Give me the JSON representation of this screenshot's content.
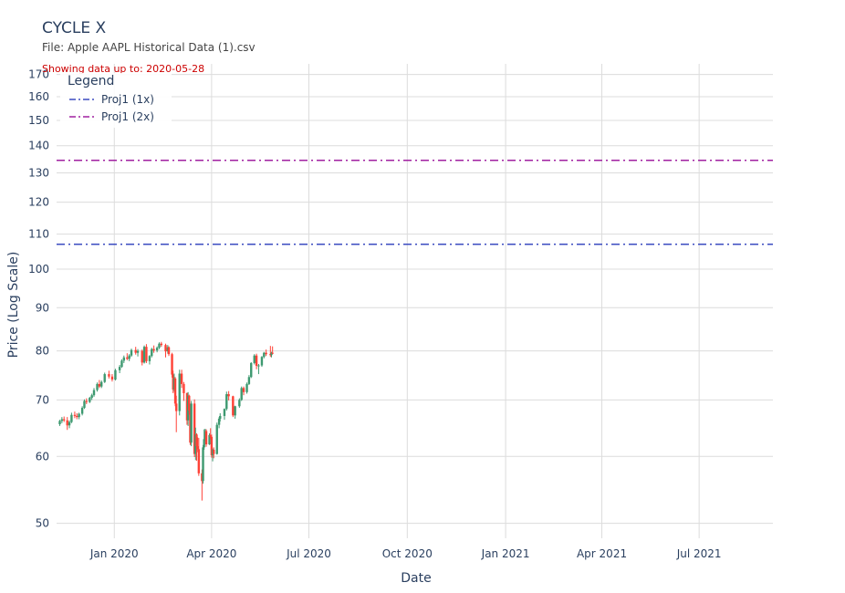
{
  "chart_data": {
    "type": "candlestick",
    "title": "CYCLE X",
    "subtitle": "File: Apple AAPL Historical Data (1).csv",
    "note": "Showing data up to: 2020-05-28",
    "xlabel": "Date",
    "ylabel": "Price (Log Scale)",
    "y_scale": "log",
    "ylim": [
      48,
      175
    ],
    "xlim": [
      "2019-11-08",
      "2021-09-08"
    ],
    "yticks": [
      50,
      60,
      70,
      80,
      90,
      100,
      110,
      120,
      130,
      140,
      150,
      160,
      170
    ],
    "xticks": [
      {
        "date": "2020-01-01",
        "label": "Jan 2020"
      },
      {
        "date": "2020-04-01",
        "label": "Apr 2020"
      },
      {
        "date": "2020-07-01",
        "label": "Jul 2020"
      },
      {
        "date": "2020-10-01",
        "label": "Oct 2020"
      },
      {
        "date": "2021-01-01",
        "label": "Jan 2021"
      },
      {
        "date": "2021-04-01",
        "label": "Apr 2021"
      },
      {
        "date": "2021-07-01",
        "label": "Jul 2021"
      }
    ],
    "grid": true,
    "legend": {
      "title": "Legend",
      "position": "top-left"
    },
    "colors": {
      "increasing": "#3d9970",
      "decreasing": "#ff4136",
      "proj1_1x": "#3b4cc0",
      "proj1_2x": "#a020a0"
    },
    "series": [
      {
        "name": "Proj1 (1x)",
        "type": "hline",
        "value": 107,
        "color": "#3b4cc0",
        "dash": "dashdot"
      },
      {
        "name": "Proj1 (2x)",
        "type": "hline",
        "value": 134.5,
        "color": "#a020a0",
        "dash": "dashdot"
      }
    ],
    "candles": [
      [
        "2019-11-11",
        65.5,
        66.3,
        65.2,
        66.1
      ],
      [
        "2019-11-13",
        66.1,
        66.8,
        65.7,
        66.4
      ],
      [
        "2019-11-15",
        66.4,
        66.9,
        65.9,
        66.2
      ],
      [
        "2019-11-18",
        66.2,
        66.8,
        64.5,
        65.3
      ],
      [
        "2019-11-20",
        65.3,
        66.2,
        64.8,
        65.9
      ],
      [
        "2019-11-22",
        65.9,
        67.6,
        65.7,
        67.2
      ],
      [
        "2019-11-25",
        67.2,
        67.8,
        66.6,
        67.0
      ],
      [
        "2019-11-27",
        67.0,
        67.5,
        66.4,
        66.8
      ],
      [
        "2019-11-29",
        66.8,
        67.6,
        66.4,
        67.4
      ],
      [
        "2019-12-02",
        67.4,
        68.8,
        67.1,
        68.5
      ],
      [
        "2019-12-04",
        68.5,
        70.1,
        68.3,
        69.8
      ],
      [
        "2019-12-06",
        69.8,
        70.3,
        69.2,
        69.6
      ],
      [
        "2019-12-09",
        69.6,
        70.6,
        69.4,
        70.4
      ],
      [
        "2019-12-11",
        70.4,
        71.2,
        70.0,
        70.9
      ],
      [
        "2019-12-13",
        70.9,
        72.3,
        70.6,
        71.9
      ],
      [
        "2019-12-16",
        71.9,
        73.4,
        71.6,
        73.1
      ],
      [
        "2019-12-18",
        73.1,
        73.9,
        72.3,
        72.6
      ],
      [
        "2019-12-20",
        72.6,
        73.8,
        72.3,
        73.5
      ],
      [
        "2019-12-23",
        73.5,
        75.4,
        73.3,
        75.1
      ],
      [
        "2019-12-27",
        75.1,
        75.8,
        74.2,
        74.6
      ],
      [
        "2019-12-30",
        74.6,
        75.1,
        73.6,
        74.0
      ],
      [
        "2020-01-02",
        74.0,
        76.2,
        73.8,
        75.9
      ],
      [
        "2020-01-06",
        75.9,
        77.0,
        75.3,
        76.6
      ],
      [
        "2020-01-08",
        76.6,
        78.2,
        76.4,
        77.9
      ],
      [
        "2020-01-10",
        77.9,
        79.0,
        77.4,
        78.6
      ],
      [
        "2020-01-13",
        78.6,
        79.5,
        78.0,
        78.3
      ],
      [
        "2020-01-15",
        78.3,
        79.3,
        77.8,
        79.0
      ],
      [
        "2020-01-17",
        79.0,
        80.5,
        78.7,
        80.2
      ],
      [
        "2020-01-21",
        80.2,
        80.9,
        79.2,
        79.6
      ],
      [
        "2020-01-23",
        79.6,
        80.4,
        78.8,
        80.0
      ],
      [
        "2020-01-27",
        80.0,
        80.3,
        76.9,
        77.5
      ],
      [
        "2020-01-29",
        77.5,
        81.2,
        77.3,
        80.9
      ],
      [
        "2020-01-31",
        80.9,
        81.5,
        77.4,
        77.8
      ],
      [
        "2020-02-03",
        77.8,
        79.1,
        77.1,
        78.9
      ],
      [
        "2020-02-05",
        78.9,
        80.7,
        78.6,
        80.4
      ],
      [
        "2020-02-07",
        80.4,
        81.2,
        79.6,
        80.1
      ],
      [
        "2020-02-10",
        80.1,
        81.0,
        79.7,
        80.7
      ],
      [
        "2020-02-12",
        80.7,
        81.9,
        80.4,
        81.6
      ],
      [
        "2020-02-14",
        81.6,
        82.0,
        80.9,
        81.3
      ],
      [
        "2020-02-18",
        81.3,
        81.6,
        78.6,
        79.9
      ],
      [
        "2020-02-20",
        79.9,
        81.3,
        79.4,
        80.8
      ],
      [
        "2020-02-21",
        80.8,
        81.0,
        78.9,
        79.3
      ],
      [
        "2020-02-24",
        79.3,
        79.6,
        74.4,
        75.0
      ],
      [
        "2020-02-25",
        75.0,
        75.8,
        71.3,
        72.0
      ],
      [
        "2020-02-26",
        72.0,
        75.2,
        71.6,
        74.2
      ],
      [
        "2020-02-27",
        74.2,
        74.5,
        68.8,
        69.3
      ],
      [
        "2020-02-28",
        69.3,
        70.8,
        64.1,
        67.9
      ],
      [
        "2020-03-02",
        67.9,
        76.0,
        67.1,
        75.2
      ],
      [
        "2020-03-04",
        75.2,
        76.0,
        72.3,
        73.1
      ],
      [
        "2020-03-06",
        73.1,
        73.5,
        69.8,
        71.3
      ],
      [
        "2020-03-09",
        71.3,
        71.4,
        65.4,
        66.2
      ],
      [
        "2020-03-10",
        66.2,
        71.5,
        65.2,
        70.8
      ],
      [
        "2020-03-11",
        70.8,
        71.0,
        67.2,
        68.0
      ],
      [
        "2020-03-12",
        68.0,
        68.3,
        61.9,
        62.3
      ],
      [
        "2020-03-13",
        62.3,
        69.8,
        61.7,
        69.3
      ],
      [
        "2020-03-16",
        69.3,
        70.1,
        59.9,
        60.4
      ],
      [
        "2020-03-17",
        60.4,
        64.9,
        59.4,
        63.7
      ],
      [
        "2020-03-18",
        63.7,
        63.9,
        59.3,
        61.7
      ],
      [
        "2020-03-19",
        61.7,
        63.2,
        60.7,
        61.2
      ],
      [
        "2020-03-20",
        61.2,
        63.1,
        56.9,
        57.3
      ],
      [
        "2020-03-23",
        57.3,
        57.9,
        53.2,
        56.1
      ],
      [
        "2020-03-24",
        56.1,
        61.9,
        55.7,
        61.5
      ],
      [
        "2020-03-25",
        61.5,
        64.6,
        61.1,
        62.9
      ],
      [
        "2020-03-26",
        62.9,
        64.7,
        62.6,
        64.3
      ],
      [
        "2020-03-27",
        64.3,
        64.6,
        61.6,
        62.0
      ],
      [
        "2020-03-30",
        62.0,
        63.9,
        61.9,
        63.6
      ],
      [
        "2020-03-31",
        63.6,
        64.8,
        62.9,
        63.3
      ],
      [
        "2020-04-01",
        63.3,
        63.7,
        59.8,
        60.2
      ],
      [
        "2020-04-02",
        60.2,
        61.3,
        59.2,
        61.1
      ],
      [
        "2020-04-03",
        61.1,
        61.5,
        59.7,
        60.4
      ],
      [
        "2020-04-06",
        60.4,
        65.8,
        60.3,
        65.4
      ],
      [
        "2020-04-08",
        65.4,
        66.8,
        64.8,
        66.5
      ],
      [
        "2020-04-09",
        66.5,
        67.5,
        66.0,
        67.0
      ],
      [
        "2020-04-13",
        67.0,
        68.4,
        66.3,
        68.3
      ],
      [
        "2020-04-15",
        68.3,
        71.6,
        68.0,
        71.1
      ],
      [
        "2020-04-17",
        71.1,
        71.7,
        69.9,
        70.7
      ],
      [
        "2020-04-21",
        70.7,
        70.8,
        66.8,
        67.1
      ],
      [
        "2020-04-23",
        67.1,
        68.9,
        66.5,
        68.8
      ],
      [
        "2020-04-27",
        68.8,
        70.3,
        68.5,
        70.0
      ],
      [
        "2020-04-29",
        70.0,
        72.6,
        69.8,
        72.3
      ],
      [
        "2020-05-01",
        72.3,
        72.6,
        70.9,
        71.5
      ],
      [
        "2020-05-04",
        71.5,
        73.4,
        71.2,
        73.1
      ],
      [
        "2020-05-06",
        73.1,
        74.9,
        72.9,
        74.5
      ],
      [
        "2020-05-08",
        74.5,
        77.6,
        74.3,
        77.4
      ],
      [
        "2020-05-11",
        77.4,
        79.3,
        77.1,
        79.0
      ],
      [
        "2020-05-13",
        79.0,
        79.4,
        76.1,
        76.8
      ],
      [
        "2020-05-15",
        76.8,
        77.2,
        75.1,
        76.9
      ],
      [
        "2020-05-18",
        76.9,
        78.9,
        76.6,
        78.7
      ],
      [
        "2020-05-20",
        78.7,
        79.8,
        78.4,
        79.6
      ],
      [
        "2020-05-22",
        79.6,
        80.3,
        78.9,
        79.3
      ],
      [
        "2020-05-26",
        79.3,
        81.1,
        78.7,
        79.1
      ],
      [
        "2020-05-27",
        79.1,
        79.8,
        78.6,
        79.6
      ],
      [
        "2020-05-28",
        79.6,
        81.0,
        79.3,
        79.5
      ]
    ]
  }
}
